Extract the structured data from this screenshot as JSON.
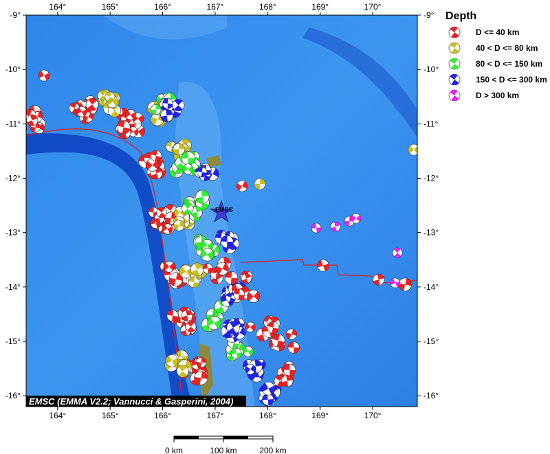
{
  "map": {
    "xlim": [
      163.4,
      170.85
    ],
    "ylim": [
      -16.2,
      -9
    ],
    "xticks": [
      {
        "value": 164,
        "label": "164°"
      },
      {
        "value": 165,
        "label": "165°"
      },
      {
        "value": 166,
        "label": "166°"
      },
      {
        "value": 167,
        "label": "167°"
      },
      {
        "value": 168,
        "label": "168°"
      },
      {
        "value": 169,
        "label": "169°"
      },
      {
        "value": 170,
        "label": "170°"
      }
    ],
    "yticks": [
      {
        "value": -9,
        "label": "-9°"
      },
      {
        "value": -10,
        "label": "-10°"
      },
      {
        "value": -11,
        "label": "-11°"
      },
      {
        "value": -12,
        "label": "-12°"
      },
      {
        "value": -13,
        "label": "-13°"
      },
      {
        "value": -14,
        "label": "-14°"
      },
      {
        "value": -15,
        "label": "-15°"
      },
      {
        "value": -16,
        "label": "-16°"
      }
    ],
    "station_label": "EMSC",
    "credit": "EMSC (EMMA V2.2; Vannucci & Gasperini, 2004)"
  },
  "legend": {
    "title": "Depth",
    "items": [
      {
        "label": "D <= 40 km",
        "color": "#ee2222"
      },
      {
        "label": "40 < D <= 80 km",
        "color": "#c8c020"
      },
      {
        "label": "80 < D <= 150 km",
        "color": "#33ee33"
      },
      {
        "label": "150 < D <= 300 km",
        "color": "#2222ee"
      },
      {
        "label": "D > 300 km",
        "color": "#ee22ee"
      }
    ]
  },
  "scale_bar": {
    "ticks": [
      {
        "value": 0,
        "label": "0 km"
      },
      {
        "value": 100,
        "label": "100 km"
      },
      {
        "value": 200,
        "label": "200 km"
      }
    ]
  }
}
